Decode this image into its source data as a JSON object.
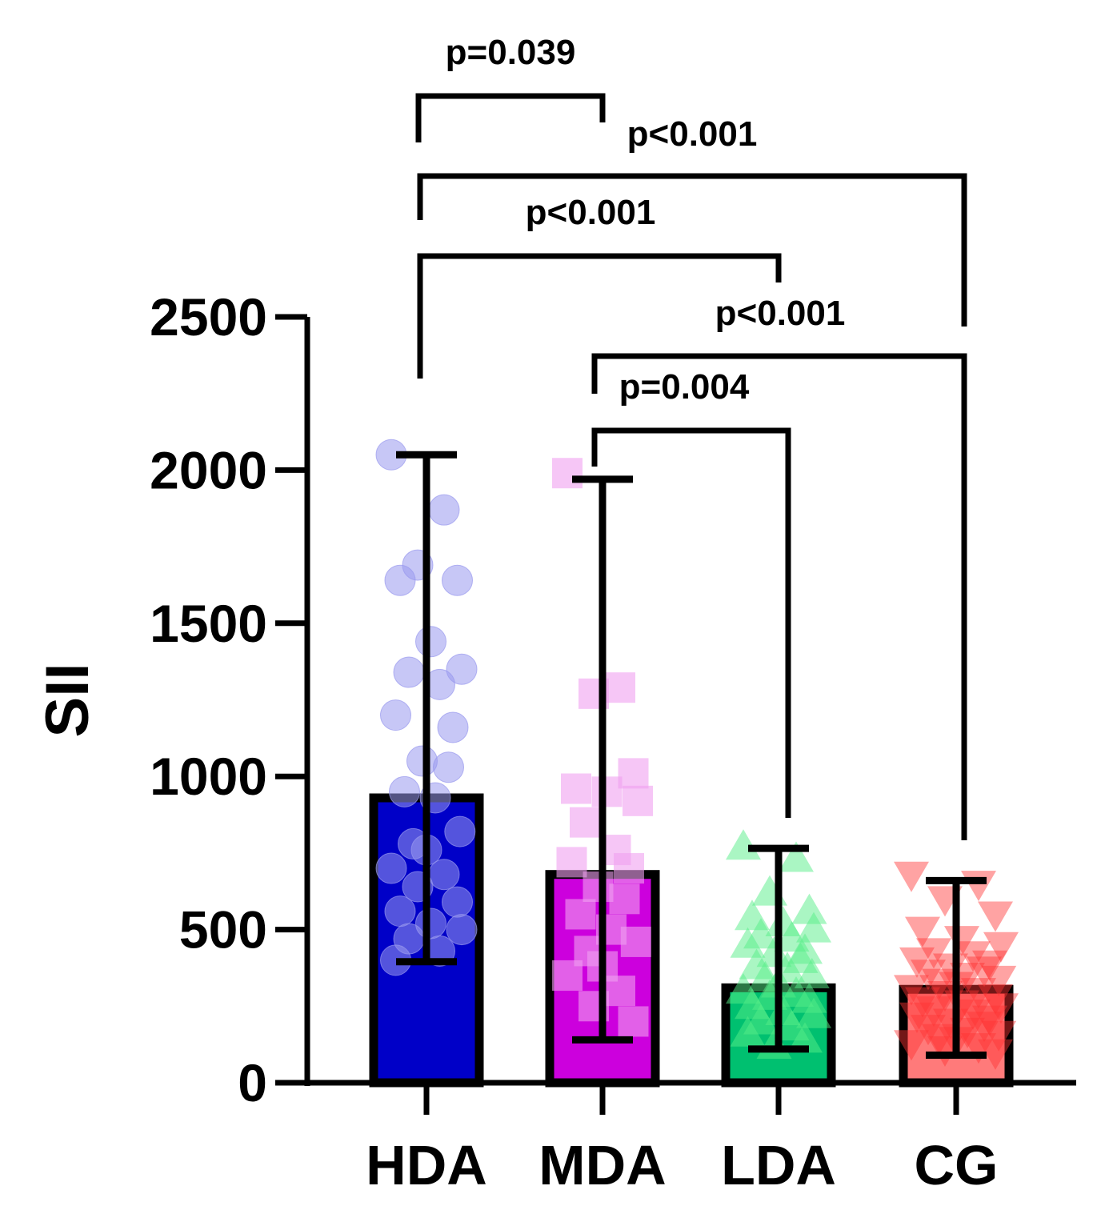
{
  "chart_data": {
    "type": "bar",
    "title": "",
    "xlabel": "",
    "ylabel": "SII",
    "ylim": [
      0,
      2500
    ],
    "yticks": [
      0,
      500,
      1000,
      1500,
      2000,
      2500
    ],
    "ytick_labels": [
      "0",
      "500",
      "1000",
      "1500",
      "2000",
      "2500"
    ],
    "grid": false,
    "categories": [
      "HDA",
      "MDA",
      "LDA",
      "CG"
    ],
    "values": [
      930,
      680,
      310,
      305
    ],
    "error_low": [
      395,
      140,
      110,
      90
    ],
    "error_high": [
      2050,
      1970,
      765,
      660
    ],
    "colors": {
      "HDA": "#0000c8",
      "MDA": "#cc00dd",
      "LDA": "#00c070",
      "CG": "#ff7a7a"
    },
    "point_colors": {
      "HDA": "#9999ee",
      "MDA": "#f0a0f0",
      "LDA": "#55ee88",
      "CG": "#ff3333"
    },
    "markers": {
      "HDA": "circle",
      "MDA": "square",
      "LDA": "triangle-up",
      "CG": "triangle-down"
    },
    "points": {
      "HDA": [
        2050,
        1870,
        1690,
        1640,
        1640,
        1440,
        1350,
        1340,
        1300,
        1200,
        1160,
        1050,
        1030,
        950,
        930,
        820,
        780,
        760,
        700,
        680,
        640,
        590,
        560,
        520,
        500,
        470,
        430,
        400
      ],
      "MDA": [
        1990,
        1290,
        1270,
        1010,
        960,
        950,
        920,
        850,
        760,
        720,
        700,
        640,
        600,
        550,
        500,
        460,
        430,
        380,
        350,
        300,
        250,
        200
      ],
      "LDA": [
        770,
        730,
        620,
        560,
        540,
        520,
        500,
        480,
        470,
        450,
        430,
        420,
        400,
        380,
        370,
        350,
        340,
        320,
        300,
        290,
        280,
        270,
        250,
        230,
        220,
        200,
        180,
        160,
        140,
        120
      ],
      "CG": [
        680,
        650,
        600,
        550,
        500,
        470,
        450,
        430,
        420,
        400,
        390,
        380,
        370,
        360,
        350,
        340,
        330,
        320,
        310,
        300,
        290,
        280,
        270,
        260,
        250,
        240,
        230,
        220,
        210,
        200,
        190,
        180,
        170,
        160,
        150,
        140,
        130,
        120,
        110,
        100
      ]
    },
    "comparisons": [
      {
        "from": "HDA",
        "to": "MDA",
        "label": "p=0.039"
      },
      {
        "from": "HDA",
        "to": "CG",
        "label": "p<0.001"
      },
      {
        "from": "HDA",
        "to": "LDA",
        "label": "p<0.001"
      },
      {
        "from": "MDA",
        "to": "CG",
        "label": "p<0.001"
      },
      {
        "from": "MDA",
        "to": "LDA",
        "label": "p=0.004"
      }
    ]
  }
}
